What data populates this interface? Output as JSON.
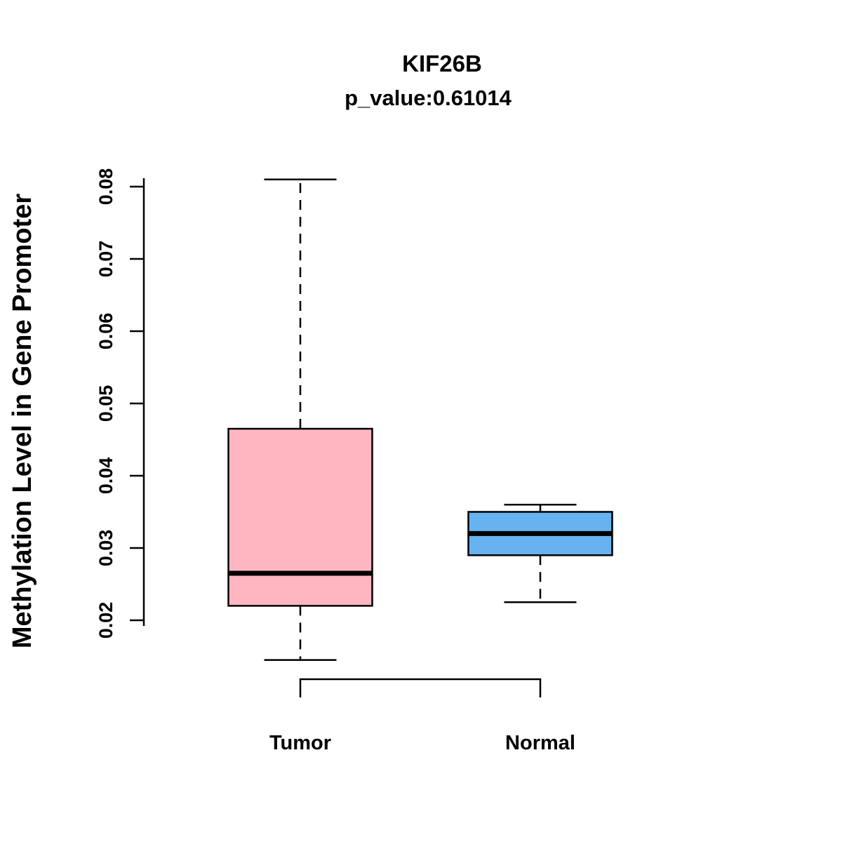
{
  "chart_data": {
    "type": "boxplot",
    "title": "KIF26B",
    "subtitle": "p_value:0.61014",
    "ylabel": "Methylation Level in Gene Promoter",
    "xlabel": "",
    "ylim": [
      0.012,
      0.084
    ],
    "yticks": [
      "0.02",
      "0.03",
      "0.04",
      "0.05",
      "0.06",
      "0.07",
      "0.08"
    ],
    "grid": false,
    "legend": "none",
    "colors": {
      "box_border": "#000000",
      "median": "#000000",
      "axis": "#000000"
    },
    "groups": [
      {
        "label": "Tumor",
        "color": "#FFB6C1",
        "whisker_low": 0.0145,
        "q1": 0.022,
        "median": 0.0265,
        "q3": 0.0465,
        "whisker_high": 0.081
      },
      {
        "label": "Normal",
        "color": "#67B2F0",
        "whisker_low": 0.0225,
        "q1": 0.029,
        "median": 0.032,
        "q3": 0.035,
        "whisker_high": 0.036
      }
    ],
    "comparison_bracket": [
      "Tumor",
      "Normal"
    ]
  }
}
